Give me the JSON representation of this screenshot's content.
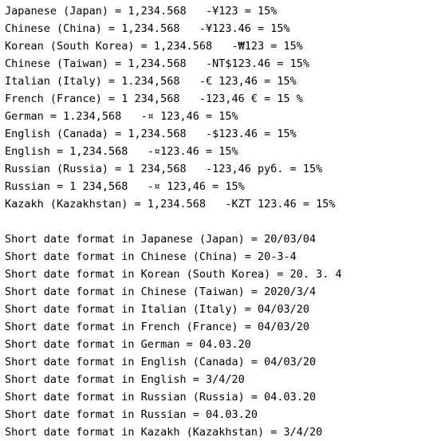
{
  "output": {
    "number_lines": [
      "Japanese (Japan) = 1,234.568   -¥123 = 15%",
      "Chinese (China) = 1,234.568   -¥123.46 = 15%",
      "Korean (South Korea) = 1,234.568   -₩123 = 15%",
      "Chinese (Taiwan) = 1,234.568   -NT$123.46 = 15%",
      "Italian (Italy) = 1.234,568   -€ 123,46 = 15%",
      "French (France) = 1 234,568   -123,46 € = 15 %",
      "German = 1.234,568   -¤ 123,46 = 15%",
      "English (Canada) = 1,234.568   -$123.46 = 15%",
      "English = 1,234.568   -¤123.46 = 15%",
      "Russian (Russia) = 1 234,568   -123,46 руб. = 15%",
      "Russian = 1 234,568   -¤ 123,46 = 15%",
      "Kazakh (Kazakhstan) = 1,234.568   -KZT 123.46 = 15%"
    ],
    "date_lines": [
      "Short date format in Japanese (Japan) = 20/03/04",
      "Short date format in Chinese (China) = 20-3-4",
      "Short date format in Korean (South Korea) = 20. 3. 4",
      "Short date format in Chinese (Taiwan) = 2020/3/4",
      "Short date format in Italian (Italy) = 04/03/20",
      "Short date format in French (France) = 04/03/20",
      "Short date format in German = 04.03.20",
      "Short date format in English (Canada) = 04/03/20",
      "Short date format in English = 3/4/20",
      "Short date format in Russian (Russia) = 04.03.20",
      "Short date format in Russian = 04.03.20",
      "Short date format in Kazakh (Kazakhstan) = 3/4/20"
    ]
  }
}
